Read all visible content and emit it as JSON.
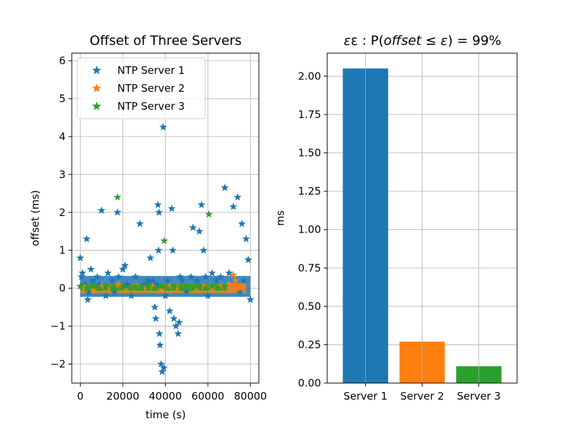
{
  "chart_data": [
    {
      "type": "scatter",
      "title": "Offset of Three Servers",
      "xlabel": "time (s)",
      "ylabel": "offset (ms)",
      "xlim": [
        -4000,
        84000
      ],
      "ylim": [
        -2.5,
        6.2
      ],
      "xticks": [
        0,
        20000,
        40000,
        60000,
        80000
      ],
      "xtick_labels": [
        "0",
        "20000",
        "40000",
        "60000",
        "80000"
      ],
      "yticks": [
        -2,
        -1,
        0,
        1,
        2,
        3,
        4,
        5,
        6
      ],
      "ytick_labels": [
        "−2",
        "−1",
        "0",
        "1",
        "2",
        "3",
        "4",
        "5",
        "6"
      ],
      "grid": true,
      "marker": "star",
      "legend_position": "top-left",
      "series": [
        {
          "name": "NTP Server 1",
          "color": "#1f77b4",
          "points": [
            [
              0,
              0.8
            ],
            [
              500,
              0.3
            ],
            [
              1000,
              0.4
            ],
            [
              2000,
              0.1
            ],
            [
              3000,
              1.3
            ],
            [
              3500,
              -0.3
            ],
            [
              4000,
              -0.1
            ],
            [
              5000,
              0.5
            ],
            [
              6000,
              0.2
            ],
            [
              8000,
              0.3
            ],
            [
              9000,
              0.1
            ],
            [
              10000,
              2.05
            ],
            [
              12000,
              -0.2
            ],
            [
              13000,
              0.4
            ],
            [
              15000,
              0.2
            ],
            [
              16000,
              -0.1
            ],
            [
              17500,
              2.0
            ],
            [
              18000,
              0.3
            ],
            [
              20000,
              0.5
            ],
            [
              21000,
              0.6
            ],
            [
              22000,
              0.1
            ],
            [
              24000,
              -0.2
            ],
            [
              26000,
              0.3
            ],
            [
              28000,
              1.7
            ],
            [
              30000,
              0.1
            ],
            [
              32000,
              0.2
            ],
            [
              33000,
              0.8
            ],
            [
              34000,
              0.2
            ],
            [
              35000,
              -0.5
            ],
            [
              35500,
              -0.8
            ],
            [
              36000,
              0.1
            ],
            [
              36500,
              2.2
            ],
            [
              36800,
              1.0
            ],
            [
              37000,
              2.0
            ],
            [
              37200,
              -1.2
            ],
            [
              37500,
              -1.5
            ],
            [
              38000,
              -2.0
            ],
            [
              38500,
              -2.2
            ],
            [
              39000,
              4.25
            ],
            [
              39300,
              -2.1
            ],
            [
              40000,
              -0.2
            ],
            [
              41000,
              0.2
            ],
            [
              42000,
              -0.6
            ],
            [
              43000,
              2.1
            ],
            [
              43500,
              1.0
            ],
            [
              44000,
              -0.8
            ],
            [
              45000,
              -1.0
            ],
            [
              46000,
              -1.2
            ],
            [
              46500,
              -0.9
            ],
            [
              47000,
              0.3
            ],
            [
              48000,
              0.2
            ],
            [
              50000,
              -0.1
            ],
            [
              52000,
              0.3
            ],
            [
              53000,
              1.6
            ],
            [
              55000,
              0.2
            ],
            [
              56000,
              1.5
            ],
            [
              57000,
              2.2
            ],
            [
              58000,
              1.0
            ],
            [
              59000,
              0.3
            ],
            [
              60000,
              -0.2
            ],
            [
              62000,
              0.4
            ],
            [
              64000,
              0.2
            ],
            [
              66000,
              0.3
            ],
            [
              68000,
              2.65
            ],
            [
              70000,
              0.4
            ],
            [
              72000,
              2.15
            ],
            [
              74000,
              2.4
            ],
            [
              75000,
              -0.1
            ],
            [
              76000,
              1.7
            ],
            [
              77000,
              0.2
            ],
            [
              78000,
              1.3
            ],
            [
              79000,
              0.75
            ],
            [
              80000,
              -0.3
            ]
          ]
        },
        {
          "name": "NTP Server 2",
          "color": "#ff7f0e",
          "points": [
            [
              2000,
              0.02
            ],
            [
              6000,
              -0.05
            ],
            [
              10000,
              0.05
            ],
            [
              14000,
              0.0
            ],
            [
              18000,
              0.1
            ],
            [
              22000,
              -0.05
            ],
            [
              26000,
              0.08
            ],
            [
              30000,
              0.0
            ],
            [
              34000,
              0.05
            ],
            [
              38000,
              -0.05
            ],
            [
              42000,
              0.05
            ],
            [
              46000,
              0.0
            ],
            [
              50000,
              0.05
            ],
            [
              54000,
              -0.05
            ],
            [
              58000,
              0.05
            ],
            [
              62000,
              0.0
            ],
            [
              66000,
              0.05
            ],
            [
              70000,
              0.1
            ],
            [
              72000,
              0.35
            ],
            [
              73000,
              0.2
            ],
            [
              74000,
              0.0
            ],
            [
              76000,
              0.05
            ]
          ]
        },
        {
          "name": "NTP Server 3",
          "color": "#2ca02c",
          "points": [
            [
              0,
              0.05
            ],
            [
              3000,
              0.0
            ],
            [
              6000,
              0.05
            ],
            [
              9000,
              0.0
            ],
            [
              12000,
              0.05
            ],
            [
              15000,
              0.0
            ],
            [
              17500,
              2.4
            ],
            [
              20000,
              0.05
            ],
            [
              23000,
              0.0
            ],
            [
              26000,
              0.05
            ],
            [
              29000,
              0.0
            ],
            [
              32000,
              0.05
            ],
            [
              35000,
              0.0
            ],
            [
              38000,
              0.05
            ],
            [
              39500,
              1.25
            ],
            [
              41000,
              0.0
            ],
            [
              44000,
              0.05
            ],
            [
              47000,
              0.0
            ],
            [
              50000,
              0.05
            ],
            [
              53000,
              0.0
            ],
            [
              56000,
              0.05
            ],
            [
              59000,
              0.0
            ],
            [
              60500,
              1.95
            ],
            [
              62000,
              0.05
            ],
            [
              65000,
              0.0
            ],
            [
              68000,
              0.05
            ]
          ]
        }
      ]
    },
    {
      "type": "bar",
      "title_prefix": "ε : P(",
      "title_offset": "offset",
      "title_leq": " ≤ ",
      "title_eps": "ε",
      "title_suffix": ") = 99%",
      "xlabel": "",
      "ylabel": "ms",
      "categories": [
        "Server 1",
        "Server 2",
        "Server 3"
      ],
      "values": [
        2.05,
        0.27,
        0.11
      ],
      "colors": [
        "#1f77b4",
        "#ff7f0e",
        "#2ca02c"
      ],
      "ylim": [
        0,
        2.15
      ],
      "yticks": [
        0,
        0.25,
        0.5,
        0.75,
        1.0,
        1.25,
        1.5,
        1.75,
        2.0
      ],
      "ytick_labels": [
        "0.00",
        "0.25",
        "0.50",
        "0.75",
        "1.00",
        "1.25",
        "1.50",
        "1.75",
        "2.00"
      ],
      "grid": true
    }
  ]
}
